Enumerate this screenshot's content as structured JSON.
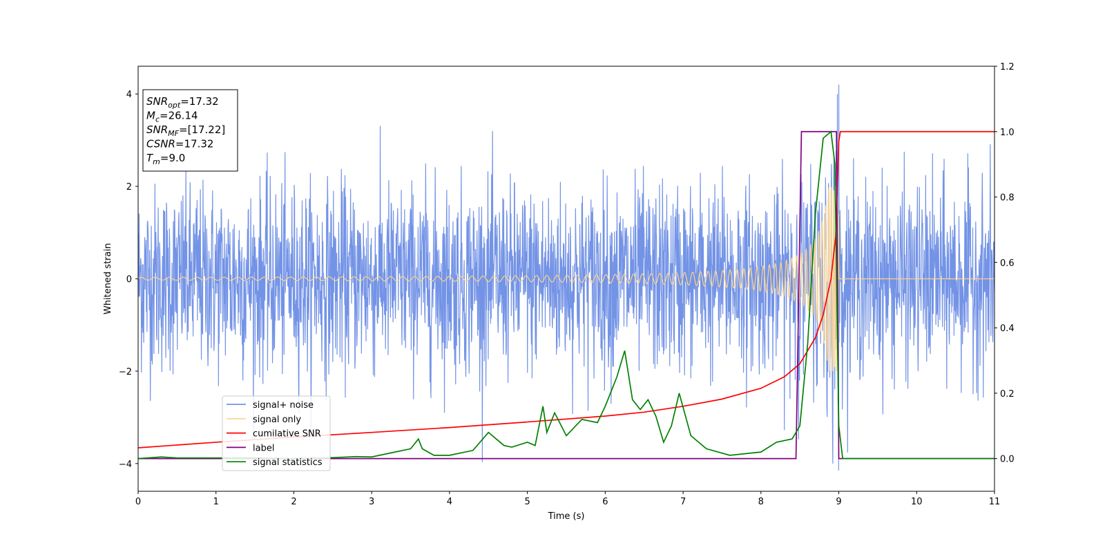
{
  "chart_data": {
    "type": "line",
    "xlabel": "Time (s)",
    "ylabel": "Whitened strain",
    "xlim": [
      0,
      11
    ],
    "ylim_left": [
      -4.6,
      4.6
    ],
    "ylim_right": [
      -0.1,
      1.2
    ],
    "x_ticks": [
      0,
      1,
      2,
      3,
      4,
      5,
      6,
      7,
      8,
      9,
      10,
      11
    ],
    "y_ticks_left": [
      -4,
      -2,
      0,
      2,
      4
    ],
    "y_ticks_right": [
      0.0,
      0.2,
      0.4,
      0.6,
      0.8,
      1.0,
      1.2
    ],
    "grid": false,
    "legend_position": "lower-left",
    "legend": [
      {
        "label": "signal+ noise",
        "color": "#7393e6"
      },
      {
        "label": "signal only",
        "color": "#fdd38a"
      },
      {
        "label": "cumilative SNR",
        "color": "#ff0000"
      },
      {
        "label": "label",
        "color": "#800080"
      },
      {
        "label": "signal statistics",
        "color": "#008000"
      }
    ],
    "annotation": {
      "lines": [
        {
          "main": "SNR",
          "sub": "opt",
          "value": "=17.32"
        },
        {
          "main": "M",
          "sub": "c",
          "value": "=26.14"
        },
        {
          "main": "SNR",
          "sub": "MF",
          "value": "=[17.22]"
        },
        {
          "main": "CSNR",
          "sub": "",
          "value": "=17.32"
        },
        {
          "main": "T",
          "sub": "m",
          "value": "=9.0"
        }
      ]
    },
    "series": [
      {
        "name": "cumilative SNR",
        "axis": "right",
        "color": "#ff0000",
        "x": [
          0,
          1,
          2,
          3,
          4,
          5,
          6,
          6.5,
          7,
          7.5,
          8,
          8.3,
          8.5,
          8.7,
          8.8,
          8.9,
          8.96,
          9.0,
          9.02,
          11
        ],
        "y": [
          0.033,
          0.05,
          0.066,
          0.08,
          0.095,
          0.112,
          0.13,
          0.142,
          0.16,
          0.182,
          0.215,
          0.25,
          0.29,
          0.37,
          0.44,
          0.55,
          0.68,
          0.97,
          1.0,
          1.0
        ]
      },
      {
        "name": "label",
        "axis": "right",
        "color": "#800080",
        "x": [
          0,
          8.45,
          8.52,
          8.97,
          9.0,
          11
        ],
        "y": [
          0.0,
          0.0,
          1.0,
          1.0,
          0.0,
          0.0
        ]
      },
      {
        "name": "signal statistics",
        "axis": "right",
        "color": "#008000",
        "x": [
          0,
          0.3,
          0.5,
          1.0,
          1.5,
          2.0,
          2.5,
          2.8,
          3.0,
          3.3,
          3.5,
          3.6,
          3.65,
          3.8,
          4.0,
          4.3,
          4.5,
          4.6,
          4.7,
          4.8,
          5.0,
          5.1,
          5.2,
          5.25,
          5.35,
          5.5,
          5.7,
          5.9,
          6.0,
          6.15,
          6.25,
          6.35,
          6.45,
          6.55,
          6.65,
          6.75,
          6.85,
          6.95,
          7.1,
          7.3,
          7.6,
          8.0,
          8.2,
          8.4,
          8.5,
          8.6,
          8.7,
          8.8,
          8.9,
          8.95,
          9.0,
          9.05,
          11
        ],
        "y": [
          0.0,
          0.005,
          0.002,
          0.002,
          0.002,
          0.0,
          0.003,
          0.006,
          0.005,
          0.02,
          0.03,
          0.06,
          0.03,
          0.01,
          0.01,
          0.025,
          0.08,
          0.06,
          0.04,
          0.035,
          0.05,
          0.04,
          0.16,
          0.08,
          0.14,
          0.07,
          0.12,
          0.11,
          0.16,
          0.25,
          0.33,
          0.18,
          0.15,
          0.18,
          0.13,
          0.05,
          0.1,
          0.2,
          0.07,
          0.03,
          0.01,
          0.02,
          0.05,
          0.06,
          0.1,
          0.35,
          0.75,
          0.98,
          1.0,
          0.9,
          0.1,
          0.0,
          0.0
        ]
      },
      {
        "name": "signal only",
        "axis": "left",
        "color": "#fdd38a",
        "model": "chirp",
        "t_merge": 9.0,
        "amp_min": 0.03,
        "amp_max": 2.0
      },
      {
        "name": "signal+ noise",
        "axis": "left",
        "color": "#7393e6",
        "model": "noise",
        "sigma": 1.0,
        "peak_max": 4.2,
        "peak_min": -4.15
      }
    ]
  }
}
